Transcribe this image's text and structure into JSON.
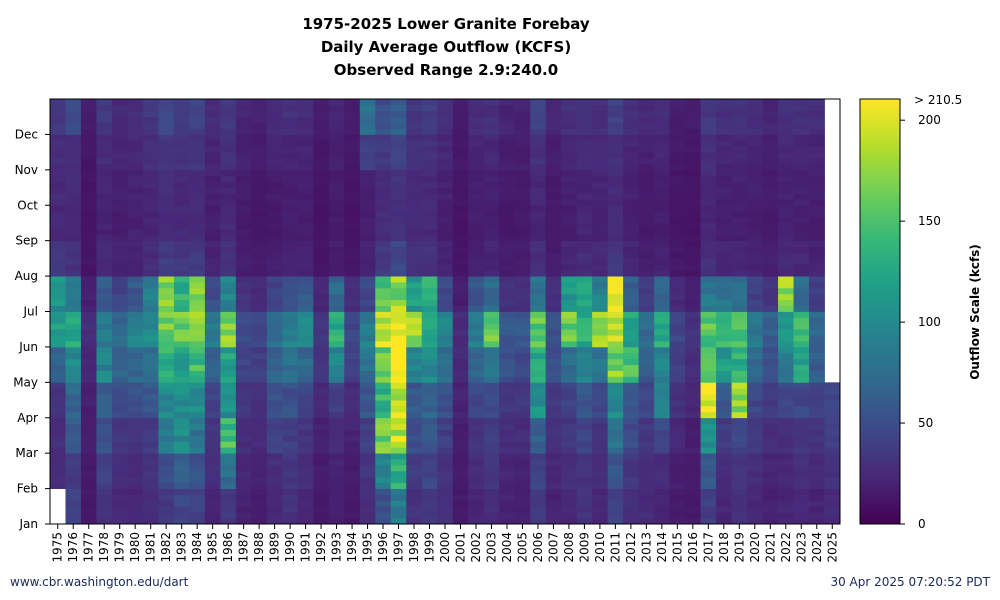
{
  "chart_data": {
    "type": "heatmap",
    "title_lines": [
      "1975-2025 Lower Granite Forebay",
      "Daily Average Outflow (KCFS)",
      "Observed Range 2.9:240.0"
    ],
    "xlabel": "",
    "ylabel": "",
    "x_categories": [
      "1975",
      "1976",
      "1977",
      "1978",
      "1979",
      "1980",
      "1981",
      "1982",
      "1983",
      "1984",
      "1985",
      "1986",
      "1987",
      "1988",
      "1989",
      "1990",
      "1991",
      "1992",
      "1993",
      "1994",
      "1995",
      "1996",
      "1997",
      "1998",
      "1999",
      "2000",
      "2001",
      "2002",
      "2003",
      "2004",
      "2005",
      "2006",
      "2007",
      "2008",
      "2009",
      "2010",
      "2011",
      "2012",
      "2013",
      "2014",
      "2015",
      "2016",
      "2017",
      "2018",
      "2019",
      "2020",
      "2021",
      "2022",
      "2023",
      "2024",
      "2025"
    ],
    "y_categories": [
      "Jan",
      "Feb",
      "Mar",
      "Apr",
      "May",
      "Jun",
      "Jul",
      "Aug",
      "Sep",
      "Oct",
      "Nov",
      "Dec"
    ],
    "y_axis_note": "day of year, Jan at bottom",
    "colorbar": {
      "label": "Outflow Scale (kcfs)",
      "min": 0,
      "max": 210.5,
      "ticks": [
        0,
        50,
        100,
        150,
        200
      ],
      "top_label": "> 210.5",
      "colormap": "viridis"
    },
    "missing_data": [
      {
        "year": "1975",
        "months": [
          "Jan",
          "Feb"
        ],
        "note": "data begins mid-Feb"
      },
      {
        "year": "2025",
        "months": [
          "May",
          "Jun",
          "Jul",
          "Aug",
          "Sep",
          "Oct",
          "Nov",
          "Dec"
        ],
        "note": "data ends end of Apr"
      }
    ],
    "values_monthly_kcfs": [
      [
        null,
        27,
        28,
        34,
        66,
        118,
        105,
        32,
        24,
        25,
        28,
        35
      ],
      [
        40,
        36,
        58,
        68,
        96,
        122,
        88,
        30,
        24,
        25,
        28,
        45
      ],
      [
        14,
        15,
        16,
        18,
        22,
        27,
        18,
        12,
        11,
        12,
        13,
        16
      ],
      [
        30,
        40,
        52,
        62,
        95,
        85,
        58,
        24,
        20,
        22,
        26,
        34
      ],
      [
        25,
        28,
        34,
        50,
        66,
        72,
        42,
        20,
        17,
        18,
        22,
        25
      ],
      [
        22,
        26,
        32,
        52,
        72,
        92,
        58,
        22,
        19,
        20,
        24,
        28
      ],
      [
        28,
        30,
        36,
        58,
        82,
        98,
        88,
        26,
        21,
        22,
        28,
        34
      ],
      [
        34,
        50,
        88,
        100,
        132,
        165,
        170,
        38,
        26,
        26,
        33,
        44
      ],
      [
        44,
        62,
        98,
        100,
        122,
        162,
        138,
        34,
        24,
        24,
        30,
        40
      ],
      [
        40,
        52,
        82,
        102,
        142,
        172,
        180,
        36,
        25,
        25,
        32,
        42
      ],
      [
        22,
        26,
        32,
        42,
        62,
        88,
        50,
        20,
        18,
        19,
        22,
        26
      ],
      [
        34,
        75,
        145,
        105,
        122,
        178,
        92,
        30,
        24,
        22,
        28,
        35
      ],
      [
        20,
        22,
        27,
        34,
        44,
        50,
        30,
        17,
        15,
        16,
        19,
        22
      ],
      [
        17,
        20,
        24,
        30,
        40,
        44,
        26,
        15,
        13,
        14,
        16,
        19
      ],
      [
        24,
        28,
        42,
        56,
        68,
        78,
        42,
        18,
        15,
        16,
        20,
        26
      ],
      [
        30,
        34,
        40,
        52,
        78,
        92,
        52,
        21,
        17,
        18,
        22,
        30
      ],
      [
        24,
        27,
        32,
        44,
        70,
        98,
        60,
        20,
        17,
        18,
        21,
        26
      ],
      [
        14,
        16,
        20,
        24,
        32,
        36,
        22,
        12,
        11,
        12,
        14,
        17
      ],
      [
        18,
        20,
        26,
        40,
        92,
        128,
        70,
        18,
        15,
        16,
        18,
        22
      ],
      [
        14,
        16,
        20,
        26,
        40,
        44,
        26,
        13,
        11,
        12,
        14,
        18
      ],
      [
        28,
        32,
        40,
        56,
        78,
        88,
        46,
        20,
        17,
        18,
        40,
        78
      ],
      [
        52,
        98,
        165,
        138,
        158,
        198,
        148,
        36,
        26,
        26,
        35,
        50
      ],
      [
        88,
        130,
        188,
        192,
        228,
        218,
        175,
        45,
        30,
        30,
        40,
        62
      ],
      [
        30,
        36,
        48,
        58,
        92,
        182,
        115,
        30,
        24,
        25,
        28,
        34
      ],
      [
        34,
        44,
        56,
        66,
        98,
        128,
        132,
        30,
        24,
        25,
        30,
        38
      ],
      [
        28,
        30,
        40,
        52,
        72,
        92,
        48,
        21,
        18,
        19,
        23,
        28
      ],
      [
        15,
        16,
        18,
        20,
        24,
        26,
        18,
        12,
        11,
        12,
        14,
        16
      ],
      [
        22,
        26,
        32,
        46,
        66,
        90,
        54,
        20,
        17,
        18,
        22,
        26
      ],
      [
        28,
        32,
        38,
        46,
        80,
        165,
        70,
        22,
        18,
        19,
        23,
        28
      ],
      [
        20,
        22,
        27,
        34,
        52,
        58,
        30,
        16,
        14,
        15,
        18,
        22
      ],
      [
        18,
        20,
        26,
        34,
        48,
        60,
        30,
        16,
        14,
        15,
        17,
        20
      ],
      [
        34,
        42,
        62,
        108,
        122,
        158,
        78,
        26,
        22,
        23,
        30,
        40
      ],
      [
        20,
        24,
        28,
        34,
        48,
        54,
        28,
        16,
        14,
        15,
        18,
        22
      ],
      [
        24,
        28,
        34,
        44,
        74,
        160,
        110,
        22,
        18,
        19,
        22,
        28
      ],
      [
        30,
        32,
        42,
        56,
        88,
        128,
        118,
        26,
        21,
        22,
        26,
        32
      ],
      [
        24,
        26,
        34,
        48,
        82,
        170,
        90,
        24,
        20,
        21,
        24,
        28
      ],
      [
        40,
        56,
        80,
        100,
        168,
        188,
        192,
        34,
        25,
        25,
        30,
        42
      ],
      [
        30,
        34,
        48,
        62,
        150,
        120,
        66,
        22,
        18,
        19,
        22,
        30
      ],
      [
        26,
        28,
        34,
        44,
        62,
        70,
        40,
        18,
        15,
        16,
        19,
        24
      ],
      [
        22,
        26,
        46,
        92,
        94,
        128,
        64,
        20,
        17,
        18,
        21,
        26
      ],
      [
        16,
        18,
        24,
        30,
        38,
        44,
        24,
        14,
        12,
        13,
        15,
        18
      ],
      [
        14,
        16,
        18,
        22,
        26,
        30,
        18,
        12,
        11,
        12,
        13,
        16
      ],
      [
        40,
        58,
        105,
        192,
        146,
        152,
        82,
        28,
        23,
        24,
        28,
        36
      ],
      [
        22,
        26,
        36,
        58,
        116,
        132,
        80,
        22,
        18,
        19,
        22,
        28
      ],
      [
        28,
        32,
        44,
        170,
        130,
        140,
        72,
        22,
        18,
        19,
        22,
        30
      ],
      [
        24,
        28,
        34,
        46,
        68,
        82,
        42,
        20,
        17,
        18,
        21,
        26
      ],
      [
        20,
        22,
        28,
        36,
        50,
        62,
        34,
        18,
        15,
        16,
        18,
        22
      ],
      [
        22,
        24,
        28,
        44,
        90,
        110,
        175,
        24,
        19,
        20,
        23,
        28
      ],
      [
        24,
        28,
        34,
        46,
        120,
        138,
        76,
        22,
        18,
        19,
        22,
        28
      ],
      [
        22,
        26,
        32,
        44,
        62,
        70,
        40,
        20,
        17,
        18,
        21,
        26
      ],
      [
        26,
        30,
        38,
        48,
        null,
        null,
        null,
        null,
        null,
        null,
        null,
        null
      ]
    ]
  },
  "footer": {
    "source": "www.cbr.washington.edu/dart",
    "timestamp": "30 Apr 2025 07:20:52 PDT"
  }
}
